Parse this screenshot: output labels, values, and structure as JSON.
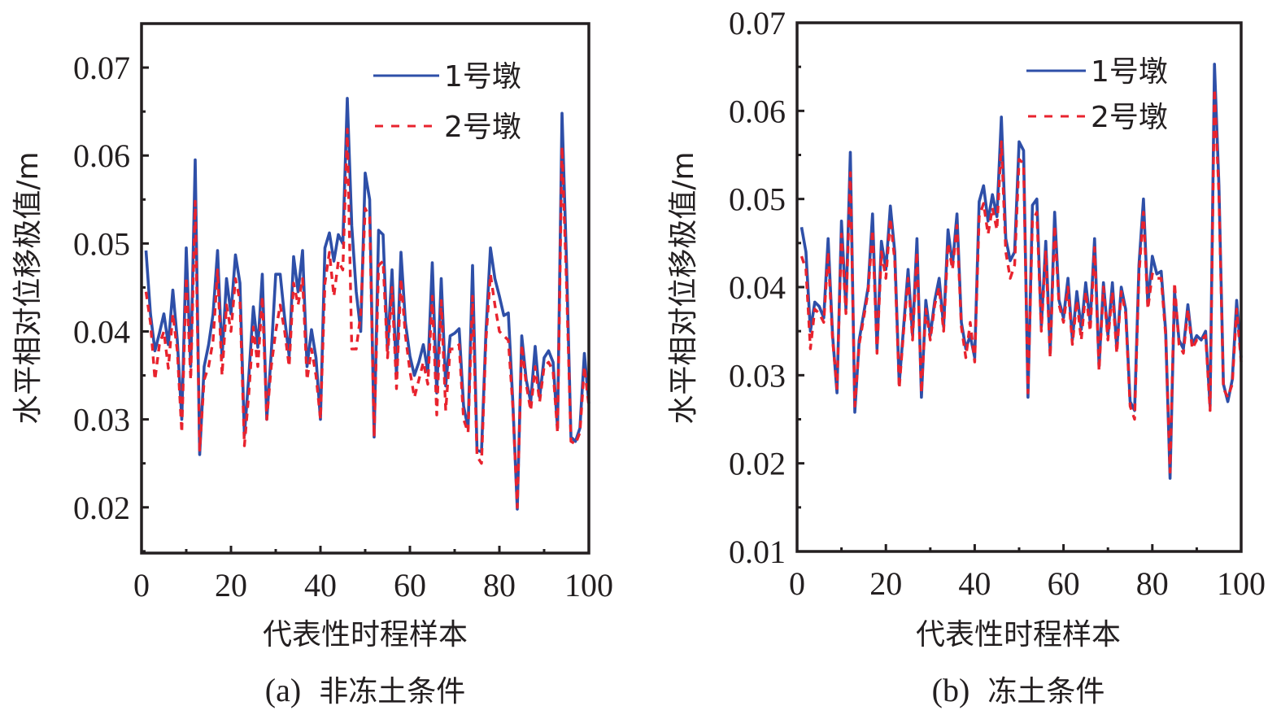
{
  "chart_data": [
    {
      "type": "line",
      "caption_prefix": "(a)",
      "caption_text": "非冻土条件",
      "xlabel": "代表性时程样本",
      "ylabel": "水平相对位移极值/m",
      "xlim": [
        0,
        100
      ],
      "ylim": [
        0.0148,
        0.075
      ],
      "xticks": [
        0,
        20,
        40,
        60,
        80,
        100
      ],
      "xtick_labels": [
        "0",
        "20",
        "40",
        "60",
        "80",
        "100"
      ],
      "yticks": [
        0.02,
        0.03,
        0.04,
        0.05,
        0.06,
        0.07
      ],
      "ytick_labels": [
        "0.02",
        "0.03",
        "0.04",
        "0.05",
        "0.06",
        "0.07"
      ],
      "legend": {
        "placement": "top-right",
        "entries": [
          "1号墩",
          "2号墩"
        ]
      },
      "grid": false,
      "series": [
        {
          "name": "1号墩",
          "color": "#2e4fa8",
          "style": "solid",
          "x": [
            1,
            2,
            3,
            4,
            5,
            6,
            7,
            8,
            9,
            10,
            11,
            12,
            13,
            14,
            15,
            16,
            17,
            18,
            19,
            20,
            21,
            22,
            23,
            24,
            25,
            26,
            27,
            28,
            29,
            30,
            31,
            32,
            33,
            34,
            35,
            36,
            37,
            38,
            39,
            40,
            41,
            42,
            43,
            44,
            45,
            46,
            47,
            48,
            49,
            50,
            51,
            52,
            53,
            54,
            55,
            56,
            57,
            58,
            59,
            60,
            61,
            62,
            63,
            64,
            65,
            66,
            67,
            68,
            69,
            70,
            71,
            72,
            73,
            74,
            75,
            76,
            77,
            78,
            79,
            80,
            81,
            82,
            83,
            84,
            85,
            86,
            87,
            88,
            89,
            90,
            91,
            92,
            93,
            94,
            95,
            96,
            97,
            98,
            99,
            100
          ],
          "values": [
            0.0492,
            0.042,
            0.0378,
            0.0398,
            0.042,
            0.0385,
            0.0447,
            0.039,
            0.03,
            0.0495,
            0.036,
            0.0595,
            0.026,
            0.036,
            0.0385,
            0.042,
            0.0492,
            0.037,
            0.046,
            0.042,
            0.0487,
            0.0455,
            0.0282,
            0.035,
            0.0428,
            0.0382,
            0.0465,
            0.03,
            0.0375,
            0.0465,
            0.0465,
            0.0415,
            0.0372,
            0.0485,
            0.0445,
            0.0492,
            0.036,
            0.0402,
            0.037,
            0.03,
            0.0495,
            0.0512,
            0.048,
            0.051,
            0.05,
            0.0665,
            0.052,
            0.0445,
            0.04,
            0.058,
            0.055,
            0.028,
            0.0515,
            0.051,
            0.038,
            0.047,
            0.035,
            0.049,
            0.041,
            0.0372,
            0.035,
            0.0365,
            0.0385,
            0.0355,
            0.0478,
            0.033,
            0.046,
            0.0338,
            0.0395,
            0.0398,
            0.0403,
            0.0315,
            0.029,
            0.0475,
            0.0265,
            0.0263,
            0.04,
            0.0495,
            0.046,
            0.044,
            0.0418,
            0.0421,
            0.032,
            0.0198,
            0.0395,
            0.0345,
            0.032,
            0.0383,
            0.0325,
            0.037,
            0.0378,
            0.0365,
            0.029,
            0.0648,
            0.048,
            0.028,
            0.0275,
            0.029,
            0.0375,
            0.0318
          ]
        },
        {
          "name": "2号墩",
          "color": "#e8232e",
          "style": "dashed",
          "x": [
            1,
            2,
            3,
            4,
            5,
            6,
            7,
            8,
            9,
            10,
            11,
            12,
            13,
            14,
            15,
            16,
            17,
            18,
            19,
            20,
            21,
            22,
            23,
            24,
            25,
            26,
            27,
            28,
            29,
            30,
            31,
            32,
            33,
            34,
            35,
            36,
            37,
            38,
            39,
            40,
            41,
            42,
            43,
            44,
            45,
            46,
            47,
            48,
            49,
            50,
            51,
            52,
            53,
            54,
            55,
            56,
            57,
            58,
            59,
            60,
            61,
            62,
            63,
            64,
            65,
            66,
            67,
            68,
            69,
            70,
            71,
            72,
            73,
            74,
            75,
            76,
            77,
            78,
            79,
            80,
            81,
            82,
            83,
            84,
            85,
            86,
            87,
            88,
            89,
            90,
            91,
            92,
            93,
            94,
            95,
            96,
            97,
            98,
            99,
            100
          ],
          "values": [
            0.0445,
            0.041,
            0.0345,
            0.0385,
            0.04,
            0.0358,
            0.042,
            0.0378,
            0.0285,
            0.0462,
            0.0345,
            0.0548,
            0.0265,
            0.0345,
            0.036,
            0.039,
            0.047,
            0.035,
            0.043,
            0.04,
            0.046,
            0.0435,
            0.027,
            0.033,
            0.0405,
            0.036,
            0.044,
            0.03,
            0.036,
            0.04,
            0.043,
            0.04,
            0.036,
            0.0455,
            0.043,
            0.046,
            0.0345,
            0.038,
            0.035,
            0.03,
            0.0455,
            0.049,
            0.044,
            0.048,
            0.047,
            0.063,
            0.038,
            0.038,
            0.042,
            0.054,
            0.053,
            0.028,
            0.0475,
            0.048,
            0.037,
            0.045,
            0.0335,
            0.046,
            0.0395,
            0.0355,
            0.0325,
            0.0345,
            0.0365,
            0.034,
            0.044,
            0.0305,
            0.0435,
            0.031,
            0.038,
            0.038,
            0.0385,
            0.03,
            0.0285,
            0.044,
            0.0258,
            0.025,
            0.039,
            0.0465,
            0.043,
            0.04,
            0.0395,
            0.039,
            0.0315,
            0.02,
            0.0385,
            0.034,
            0.031,
            0.036,
            0.032,
            0.036,
            0.0365,
            0.0355,
            0.0285,
            0.061,
            0.0455,
            0.0275,
            0.0272,
            0.0285,
            0.036,
            0.0315
          ]
        }
      ]
    },
    {
      "type": "line",
      "caption_prefix": "(b)",
      "caption_text": "冻土条件",
      "xlabel": "代表性时程样本",
      "ylabel": "水平相对位移极值/m",
      "xlim": [
        0,
        100
      ],
      "ylim": [
        0.01,
        0.07
      ],
      "xticks": [
        0,
        20,
        40,
        60,
        80,
        100
      ],
      "xtick_labels": [
        "0",
        "20",
        "40",
        "60",
        "80",
        "100"
      ],
      "yticks": [
        0.01,
        0.02,
        0.03,
        0.04,
        0.05,
        0.06,
        0.07
      ],
      "ytick_labels": [
        "0.01",
        "0.02",
        "0.03",
        "0.04",
        "0.05",
        "0.06",
        "0.07"
      ],
      "legend": {
        "placement": "top-right",
        "entries": [
          "1号墩",
          "2号墩"
        ]
      },
      "grid": false,
      "series": [
        {
          "name": "1号墩",
          "color": "#2e4fa8",
          "style": "solid",
          "x": [
            1,
            2,
            3,
            4,
            5,
            6,
            7,
            8,
            9,
            10,
            11,
            12,
            13,
            14,
            15,
            16,
            17,
            18,
            19,
            20,
            21,
            22,
            23,
            24,
            25,
            26,
            27,
            28,
            29,
            30,
            31,
            32,
            33,
            34,
            35,
            36,
            37,
            38,
            39,
            40,
            41,
            42,
            43,
            44,
            45,
            46,
            47,
            48,
            49,
            50,
            51,
            52,
            53,
            54,
            55,
            56,
            57,
            58,
            59,
            60,
            61,
            62,
            63,
            64,
            65,
            66,
            67,
            68,
            69,
            70,
            71,
            72,
            73,
            74,
            75,
            76,
            77,
            78,
            79,
            80,
            81,
            82,
            83,
            84,
            85,
            86,
            87,
            88,
            89,
            90,
            91,
            92,
            93,
            94,
            95,
            96,
            97,
            98,
            99,
            100
          ],
          "values": [
            0.0468,
            0.044,
            0.035,
            0.0383,
            0.0378,
            0.0365,
            0.0455,
            0.0345,
            0.028,
            0.0475,
            0.0375,
            0.0553,
            0.0258,
            0.034,
            0.037,
            0.04,
            0.0483,
            0.033,
            0.0452,
            0.042,
            0.0492,
            0.044,
            0.029,
            0.0355,
            0.042,
            0.0345,
            0.0455,
            0.0275,
            0.0385,
            0.0345,
            0.0385,
            0.041,
            0.0355,
            0.0465,
            0.0425,
            0.0483,
            0.036,
            0.033,
            0.0345,
            0.032,
            0.0497,
            0.0515,
            0.0475,
            0.0505,
            0.048,
            0.0593,
            0.0455,
            0.043,
            0.044,
            0.0565,
            0.0555,
            0.0275,
            0.0493,
            0.05,
            0.0355,
            0.0452,
            0.0325,
            0.0485,
            0.0385,
            0.0365,
            0.041,
            0.034,
            0.0395,
            0.0352,
            0.0405,
            0.036,
            0.0455,
            0.031,
            0.0405,
            0.0345,
            0.0405,
            0.033,
            0.04,
            0.0375,
            0.027,
            0.026,
            0.0425,
            0.05,
            0.038,
            0.0435,
            0.0415,
            0.0418,
            0.035,
            0.0183,
            0.0395,
            0.034,
            0.033,
            0.038,
            0.0335,
            0.0345,
            0.034,
            0.035,
            0.0265,
            0.0653,
            0.0515,
            0.029,
            0.027,
            0.0295,
            0.0385,
            0.032
          ]
        },
        {
          "name": "2号墩",
          "color": "#e8232e",
          "style": "dashed",
          "x": [
            1,
            2,
            3,
            4,
            5,
            6,
            7,
            8,
            9,
            10,
            11,
            12,
            13,
            14,
            15,
            16,
            17,
            18,
            19,
            20,
            21,
            22,
            23,
            24,
            25,
            26,
            27,
            28,
            29,
            30,
            31,
            32,
            33,
            34,
            35,
            36,
            37,
            38,
            39,
            40,
            41,
            42,
            43,
            44,
            45,
            46,
            47,
            48,
            49,
            50,
            51,
            52,
            53,
            54,
            55,
            56,
            57,
            58,
            59,
            60,
            61,
            62,
            63,
            64,
            65,
            66,
            67,
            68,
            69,
            70,
            71,
            72,
            73,
            74,
            75,
            76,
            77,
            78,
            79,
            80,
            81,
            82,
            83,
            84,
            85,
            86,
            87,
            88,
            89,
            90,
            91,
            92,
            93,
            94,
            95,
            96,
            97,
            98,
            99,
            100
          ],
          "values": [
            0.0435,
            0.042,
            0.033,
            0.0375,
            0.037,
            0.036,
            0.044,
            0.034,
            0.0285,
            0.046,
            0.037,
            0.053,
            0.0265,
            0.0335,
            0.0365,
            0.0395,
            0.0465,
            0.0325,
            0.044,
            0.041,
            0.0478,
            0.043,
            0.0285,
            0.035,
            0.041,
            0.034,
            0.044,
            0.028,
            0.0375,
            0.034,
            0.038,
            0.04,
            0.035,
            0.045,
            0.042,
            0.047,
            0.0355,
            0.032,
            0.036,
            0.0315,
            0.048,
            0.0495,
            0.046,
            0.049,
            0.0465,
            0.0565,
            0.044,
            0.041,
            0.0425,
            0.0545,
            0.054,
            0.028,
            0.0475,
            0.0485,
            0.035,
            0.044,
            0.032,
            0.047,
            0.038,
            0.036,
            0.04,
            0.0335,
            0.0385,
            0.034,
            0.0395,
            0.035,
            0.0445,
            0.0305,
            0.04,
            0.034,
            0.0395,
            0.0325,
            0.0395,
            0.037,
            0.0265,
            0.025,
            0.0415,
            0.0485,
            0.0375,
            0.0415,
            0.041,
            0.041,
            0.0345,
            0.019,
            0.0405,
            0.0335,
            0.0325,
            0.0375,
            0.033,
            0.034,
            0.034,
            0.0345,
            0.026,
            0.0625,
            0.0505,
            0.0285,
            0.0275,
            0.029,
            0.0375,
            0.0315
          ]
        }
      ]
    }
  ]
}
